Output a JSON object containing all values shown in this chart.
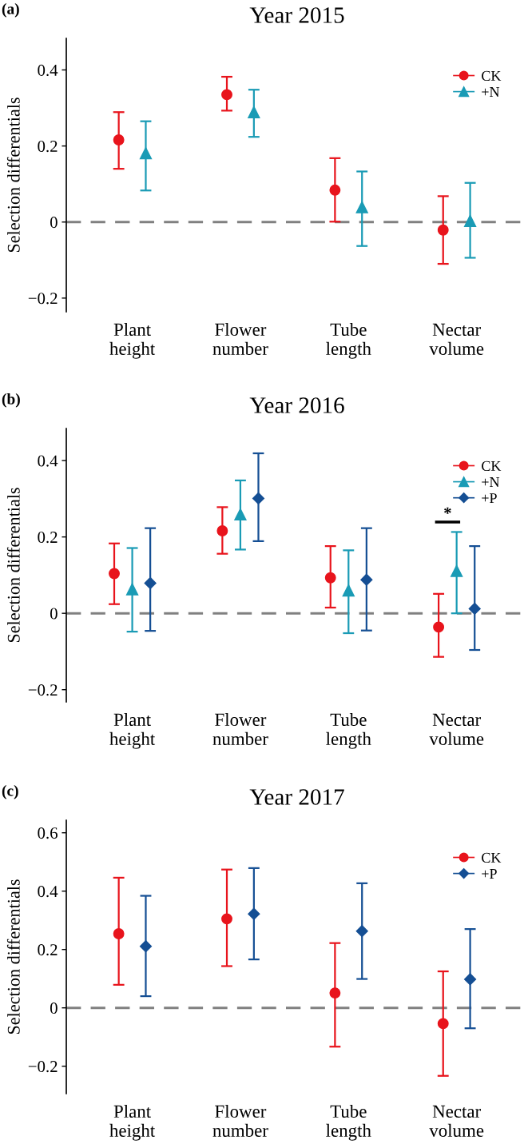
{
  "chart_data": [
    {
      "type": "scatter",
      "title": "Year 2015",
      "ylabel": "Selection differentials",
      "categories": [
        "Plant\nheight",
        "Flower\nnumber",
        "Tube\nlength",
        "Nectar\nvolume"
      ],
      "ylim": [
        -0.236,
        0.483
      ],
      "yticks": [
        -0.2,
        0,
        0.2,
        0.4
      ],
      "series": [
        {
          "name": "CK",
          "color": "#e8141c",
          "marker": "circle",
          "values": [
            0.216,
            0.335,
            0.084,
            -0.021
          ],
          "errors": [
            [
              0.14,
              0.289
            ],
            [
              0.293,
              0.382
            ],
            [
              0.001,
              0.168
            ],
            [
              -0.11,
              0.068
            ]
          ]
        },
        {
          "name": "+N",
          "color": "#1a9bb5",
          "marker": "triangle",
          "values": [
            0.181,
            0.289,
            0.039,
            0.003
          ],
          "errors": [
            [
              0.083,
              0.265
            ],
            [
              0.224,
              0.348
            ],
            [
              -0.063,
              0.133
            ],
            [
              -0.094,
              0.103
            ]
          ]
        }
      ],
      "ref_lines": [
        {
          "axis": "y",
          "value": 0,
          "color": "#808080",
          "line_style": "dashed"
        }
      ],
      "annotations": [
        "(a)"
      ],
      "legend": "top right",
      "grid": false
    },
    {
      "type": "scatter",
      "title": "Year 2016",
      "ylabel": "Selection differentials",
      "categories": [
        "Plant\nheight",
        "Flower\nnumber",
        "Tube\nlength",
        "Nectar\nvolume"
      ],
      "ylim": [
        -0.232,
        0.484
      ],
      "yticks": [
        -0.2,
        0,
        0.2,
        0.4
      ],
      "series": [
        {
          "name": "CK",
          "color": "#e8141c",
          "marker": "circle",
          "values": [
            0.104,
            0.216,
            0.093,
            -0.036
          ],
          "errors": [
            [
              0.024,
              0.183
            ],
            [
              0.156,
              0.278
            ],
            [
              0.015,
              0.176
            ],
            [
              -0.114,
              0.051
            ]
          ]
        },
        {
          "name": "+N",
          "color": "#1a9bb5",
          "marker": "triangle",
          "values": [
            0.063,
            0.259,
            0.06,
            0.111
          ],
          "errors": [
            [
              -0.048,
              0.171
            ],
            [
              0.167,
              0.348
            ],
            [
              -0.052,
              0.165
            ],
            [
              0,
              0.213
            ]
          ]
        },
        {
          "name": "+P",
          "color": "#154f94",
          "marker": "diamond",
          "values": [
            0.079,
            0.301,
            0.088,
            0.012
          ],
          "errors": [
            [
              -0.046,
              0.223
            ],
            [
              0.189,
              0.419
            ],
            [
              -0.045,
              0.223
            ],
            [
              -0.096,
              0.176
            ]
          ]
        }
      ],
      "ref_lines": [
        {
          "axis": "y",
          "value": 0,
          "color": "#808080",
          "line_style": "dashed"
        }
      ],
      "annotations": [
        "(b)",
        "*"
      ],
      "legend": "top right",
      "grid": false
    },
    {
      "type": "scatter",
      "title": "Year 2017",
      "ylabel": "Selection differentials",
      "categories": [
        "Plant\nheight",
        "Flower\nnumber",
        "Tube\nlength",
        "Nectar\nvolume"
      ],
      "ylim": [
        -0.294,
        0.643
      ],
      "yticks": [
        -0.2,
        0,
        0.2,
        0.4,
        0.6
      ],
      "series": [
        {
          "name": "CK",
          "color": "#e8141c",
          "marker": "circle",
          "values": [
            0.254,
            0.305,
            0.051,
            -0.054
          ],
          "errors": [
            [
              0.079,
              0.446
            ],
            [
              0.143,
              0.474
            ],
            [
              -0.133,
              0.222
            ],
            [
              -0.233,
              0.125
            ]
          ]
        },
        {
          "name": "+P",
          "color": "#154f94",
          "marker": "diamond",
          "values": [
            0.211,
            0.322,
            0.263,
            0.098
          ],
          "errors": [
            [
              0.04,
              0.384
            ],
            [
              0.166,
              0.479
            ],
            [
              0.099,
              0.427
            ],
            [
              -0.07,
              0.27
            ]
          ]
        }
      ],
      "ref_lines": [
        {
          "axis": "y",
          "value": 0,
          "color": "#808080",
          "line_style": "dashed"
        }
      ],
      "annotations": [
        "(c)"
      ],
      "legend": "top right",
      "grid": false
    }
  ]
}
